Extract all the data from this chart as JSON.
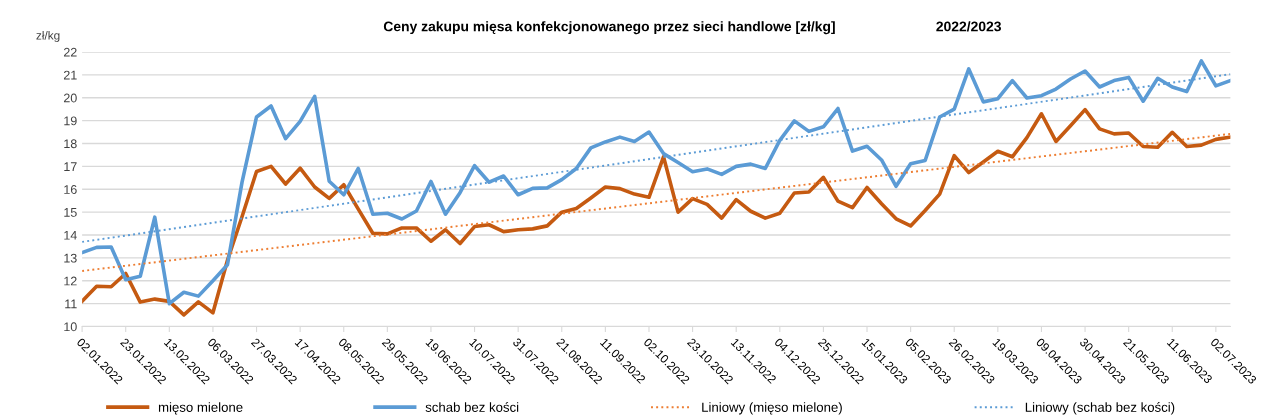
{
  "chart_data": {
    "type": "line",
    "title": "Ceny zakupu mięsa konfekcjonowanego przez sieci handlowe [zł/kg]",
    "subtitle": "2022/2023",
    "ylabel": "zł/kg",
    "x": [
      "2022-01-02",
      "2022-01-09",
      "2022-01-16",
      "2022-01-23",
      "2022-01-30",
      "2022-02-06",
      "2022-02-13",
      "2022-02-20",
      "2022-02-27",
      "2022-03-06",
      "2022-03-13",
      "2022-03-20",
      "2022-03-27",
      "2022-04-03",
      "2022-04-10",
      "2022-04-17",
      "2022-04-24",
      "2022-05-01",
      "2022-05-08",
      "2022-05-15",
      "2022-05-22",
      "2022-05-29",
      "2022-06-05",
      "2022-06-12",
      "2022-06-19",
      "2022-06-26",
      "2022-07-03",
      "2022-07-10",
      "2022-07-17",
      "2022-07-24",
      "2022-07-31",
      "2022-08-07",
      "2022-08-14",
      "2022-08-21",
      "2022-08-28",
      "2022-09-04",
      "2022-09-11",
      "2022-09-18",
      "2022-09-25",
      "2022-10-02",
      "2022-10-09",
      "2022-10-16",
      "2022-10-23",
      "2022-10-30",
      "2022-11-06",
      "2022-11-13",
      "2022-11-20",
      "2022-11-27",
      "2022-12-04",
      "2022-12-11",
      "2022-12-18",
      "2022-12-25",
      "2023-01-01",
      "2023-01-08",
      "2023-01-15",
      "2023-01-22",
      "2023-01-29",
      "2023-02-05",
      "2023-02-12",
      "2023-02-19",
      "2023-02-26",
      "2023-03-05",
      "2023-03-12",
      "2023-03-19",
      "2023-03-26",
      "2023-04-02",
      "2023-04-09",
      "2023-04-16",
      "2023-04-23",
      "2023-04-30",
      "2023-05-07",
      "2023-05-14",
      "2023-05-21",
      "2023-05-28",
      "2023-06-04",
      "2023-06-11",
      "2023-06-18",
      "2023-06-25",
      "2023-07-02",
      "2023-07-09"
    ],
    "series": [
      {
        "name": "mięso mielone",
        "color": "#c55a11",
        "values": [
          11.11,
          11.76,
          11.74,
          12.32,
          11.07,
          11.2,
          11.1,
          10.51,
          11.08,
          10.6,
          12.9,
          14.8,
          16.78,
          17.0,
          16.23,
          16.92,
          16.1,
          15.6,
          16.2,
          15.13,
          14.08,
          14.05,
          14.31,
          14.31,
          13.73,
          14.23,
          13.63,
          14.37,
          14.45,
          14.15,
          14.23,
          14.27,
          14.4,
          15.0,
          15.16,
          15.62,
          16.1,
          16.03,
          15.79,
          15.65,
          17.42,
          15.0,
          15.59,
          15.34,
          14.74,
          15.55,
          15.04,
          14.74,
          14.95,
          15.84,
          15.88,
          16.52,
          15.48,
          15.2,
          16.08,
          15.37,
          14.71,
          14.4,
          15.07,
          15.79,
          17.47,
          16.73,
          17.19,
          17.66,
          17.42,
          18.26,
          19.3,
          18.09,
          18.78,
          19.48,
          18.64,
          18.42,
          18.46,
          17.87,
          17.84,
          18.49,
          17.87,
          17.93,
          18.18,
          18.28
        ]
      },
      {
        "name": "schab bez kości",
        "color": "#5b9bd5",
        "values": [
          13.23,
          13.46,
          13.48,
          12.05,
          12.2,
          14.78,
          11.0,
          11.5,
          11.33,
          12.0,
          12.7,
          16.3,
          19.16,
          19.64,
          18.21,
          18.97,
          20.06,
          16.35,
          15.76,
          16.91,
          14.91,
          14.95,
          14.7,
          15.05,
          16.34,
          14.91,
          15.85,
          17.03,
          16.31,
          16.58,
          15.76,
          16.04,
          16.06,
          16.42,
          16.91,
          17.81,
          18.07,
          18.28,
          18.09,
          18.5,
          17.56,
          17.17,
          16.77,
          16.89,
          16.65,
          17.0,
          17.1,
          16.91,
          18.14,
          18.99,
          18.53,
          18.73,
          19.53,
          17.67,
          17.88,
          17.28,
          16.13,
          17.12,
          17.26,
          19.16,
          19.5,
          21.26,
          19.82,
          19.96,
          20.75,
          19.99,
          20.09,
          20.38,
          20.82,
          21.17,
          20.47,
          20.75,
          20.89,
          19.85,
          20.85,
          20.47,
          20.27,
          21.61,
          20.52,
          20.75
        ]
      },
      {
        "name": "Liniowy (mięso mielone)",
        "color": "#ed7d31",
        "line_style": "dotted",
        "x": [
          "2022-01-02",
          "2023-07-09"
        ],
        "values": [
          12.43,
          18.42
        ]
      },
      {
        "name": "Liniowy (schab bez kości)",
        "color": "#5b9bd5",
        "line_style": "dotted",
        "x": [
          "2022-01-02",
          "2023-07-09"
        ],
        "values": [
          13.7,
          21.03
        ]
      }
    ],
    "xlim": [
      "2022-01-02",
      "2023-07-09"
    ],
    "xticks": [
      {
        "value": "2022-01-02",
        "label": "02.01.2022"
      },
      {
        "value": "2022-01-23",
        "label": "23.01.2022"
      },
      {
        "value": "2022-02-13",
        "label": "13.02.2022"
      },
      {
        "value": "2022-03-06",
        "label": "06.03.2022"
      },
      {
        "value": "2022-03-27",
        "label": "27.03.2022"
      },
      {
        "value": "2022-04-17",
        "label": "17.04.2022"
      },
      {
        "value": "2022-05-08",
        "label": "08.05.2022"
      },
      {
        "value": "2022-05-29",
        "label": "29.05.2022"
      },
      {
        "value": "2022-06-19",
        "label": "19.06.2022"
      },
      {
        "value": "2022-07-10",
        "label": "10.07.2022"
      },
      {
        "value": "2022-07-31",
        "label": "31.07.2022"
      },
      {
        "value": "2022-08-21",
        "label": "21.08.2022"
      },
      {
        "value": "2022-09-11",
        "label": "11.09.2022"
      },
      {
        "value": "2022-10-02",
        "label": "02.10.2022"
      },
      {
        "value": "2022-10-23",
        "label": "23.10.2022"
      },
      {
        "value": "2022-11-13",
        "label": "13.11.2022"
      },
      {
        "value": "2022-12-04",
        "label": "04.12.2022"
      },
      {
        "value": "2022-12-25",
        "label": "25.12.2022"
      },
      {
        "value": "2023-01-15",
        "label": "15.01.2023"
      },
      {
        "value": "2023-02-05",
        "label": "05.02.2023"
      },
      {
        "value": "2023-02-26",
        "label": "26.02.2023"
      },
      {
        "value": "2023-03-19",
        "label": "19.03.2023"
      },
      {
        "value": "2023-04-09",
        "label": "09.04.2023"
      },
      {
        "value": "2023-04-30",
        "label": "30.04.2023"
      },
      {
        "value": "2023-05-21",
        "label": "21.05.2023"
      },
      {
        "value": "2023-06-11",
        "label": "11.06.2023"
      },
      {
        "value": "2023-07-02",
        "label": "02.07.2023"
      }
    ],
    "ylim": [
      10,
      22
    ],
    "yticks": [
      10,
      11,
      12,
      13,
      14,
      15,
      16,
      17,
      18,
      19,
      20,
      21,
      22
    ],
    "grid": "y",
    "legend": "bottom",
    "marker": "none",
    "line_style": "solid"
  }
}
